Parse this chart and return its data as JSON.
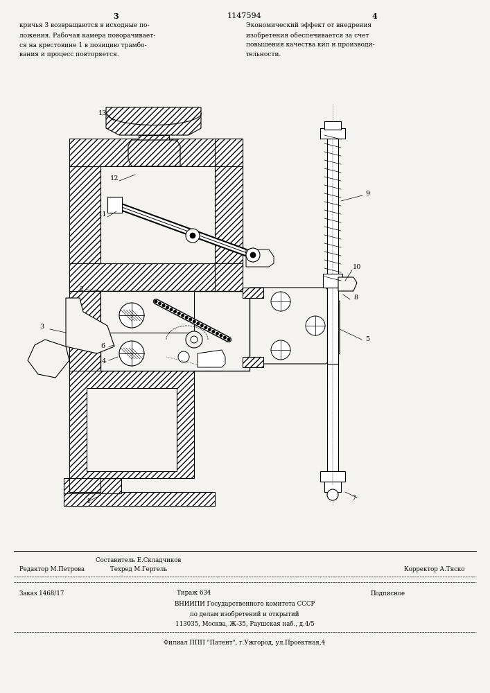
{
  "bg_color": "#f5f3ef",
  "page_width": 7.07,
  "page_height": 10.0,
  "patent_number": "1147594",
  "header_left_page": "3",
  "header_right_page": "4",
  "header_left_text": [
    "кричья 3 возвращаются в исходные по-",
    "ложения. Рабочая камера поворачивает-",
    "ся на крестовине 1 в позицию трамбо-",
    "вания и процесс повторяется."
  ],
  "header_right_text": [
    "Экономический эффект от внедрения",
    "изобретения обеспечивается за счет",
    "повышения качества кип и производи-",
    "тельности."
  ],
  "footer_editor": "Редактор М.Петрова",
  "footer_sostavitel": "Составитель Е.Складчиков",
  "footer_tehred": "Техред М.Гергель",
  "footer_korrektor": "Корректор А.Тяско",
  "footer_zakaz": "Заказ 1468/17",
  "footer_tirazh": "Тираж 634",
  "footer_podpisnoe": "Подписное",
  "footer_vniipи": "ВНИИПИ Государственного комитета СССР",
  "footer_dela": "по делам изобретений и открытий",
  "footer_addr": "113035, Москва, Ж-35, Раушская наб., д.4/5",
  "footer_filial": "Филиал ППП \"Патент\", г.Ужгород, ул.Проектная,4"
}
